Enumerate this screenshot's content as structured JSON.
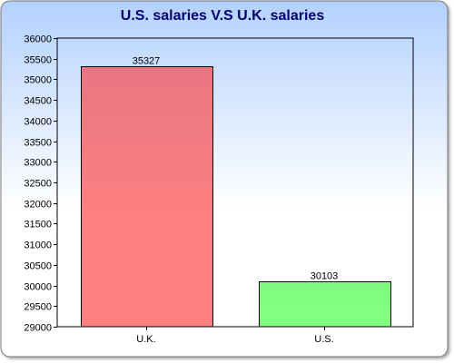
{
  "chart_data": {
    "type": "bar",
    "title": "U.S. salaries V.S U.K. salaries",
    "xlabel": "",
    "ylabel": "",
    "categories": [
      "U.K.",
      "U.S."
    ],
    "values": [
      35327,
      30103
    ],
    "data_labels": [
      "35327",
      "30103"
    ],
    "ylim": [
      29000,
      36000
    ],
    "yticks": [
      29000,
      29500,
      30000,
      30500,
      31000,
      31500,
      32000,
      32500,
      33000,
      33500,
      34000,
      34500,
      35000,
      35500,
      36000
    ],
    "grid": false,
    "legend": "none",
    "bar_colors": [
      {
        "top": "#e87683",
        "bottom": "#ff8080"
      },
      {
        "top": "#7ff87f",
        "bottom": "#80ff80"
      }
    ],
    "title_color": "#00006e",
    "background_top_color": "#b3d1ff",
    "background_bottom_color": "#ffffff",
    "frame_color": "#777777"
  }
}
